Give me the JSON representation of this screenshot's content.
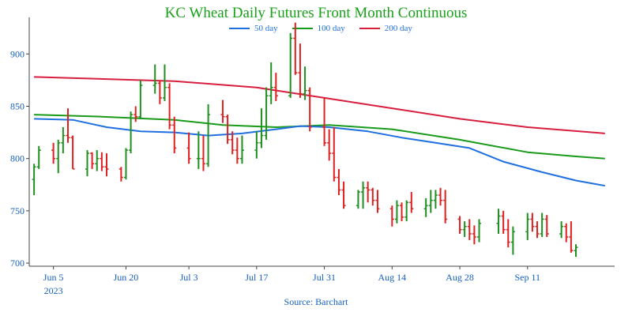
{
  "chart_data": {
    "type": "ohlc",
    "title": "KC Wheat Daily Futures Front Month Continuous",
    "source": "Source: Barchart",
    "ylim": [
      697,
      935
    ],
    "yticks": [
      700,
      750,
      800,
      850,
      900
    ],
    "x_range": [
      "2023-05-31",
      "2023-09-29"
    ],
    "xticks": [
      {
        "date": "2023-06-05",
        "label": "Jun 5",
        "sublabel": "2023"
      },
      {
        "date": "2023-06-20",
        "label": "Jun 20"
      },
      {
        "date": "2023-07-03",
        "label": "Jul 3"
      },
      {
        "date": "2023-07-17",
        "label": "Jul 17"
      },
      {
        "date": "2023-07-31",
        "label": "Jul 31"
      },
      {
        "date": "2023-08-14",
        "label": "Aug 14"
      },
      {
        "date": "2023-08-28",
        "label": "Aug 28"
      },
      {
        "date": "2023-09-11",
        "label": "Sep 11"
      }
    ],
    "colors": {
      "up": "#1f8f1f",
      "down": "#e02020",
      "ma50": "#1f6fdf",
      "ma100": "#1a9a1a",
      "ma200": "#d81e3e",
      "axis": "#444444",
      "title": "#1aa11a",
      "ticks": "#1560c0"
    },
    "legend": [
      {
        "name": "50 day",
        "color": "#1f6fdf"
      },
      {
        "name": "100 day",
        "color": "#1a9a1a"
      },
      {
        "name": "200 day",
        "color": "#d81e3e"
      }
    ],
    "bars": [
      [
        "2023-06-01",
        780,
        795,
        765,
        792
      ],
      [
        "2023-06-02",
        792,
        812,
        790,
        808
      ],
      [
        "2023-06-05",
        808,
        815,
        795,
        800
      ],
      [
        "2023-06-06",
        800,
        818,
        786,
        815
      ],
      [
        "2023-06-07",
        815,
        830,
        805,
        822
      ],
      [
        "2023-06-08",
        822,
        848,
        815,
        820
      ],
      [
        "2023-06-09",
        820,
        822,
        790,
        790
      ],
      [
        "2023-06-12",
        790,
        808,
        783,
        805
      ],
      [
        "2023-06-13",
        805,
        806,
        790,
        795
      ],
      [
        "2023-06-14",
        795,
        808,
        788,
        800
      ],
      [
        "2023-06-15",
        800,
        806,
        788,
        792
      ],
      [
        "2023-06-16",
        792,
        805,
        783,
        790
      ],
      [
        "2023-06-19",
        790,
        792,
        778,
        782
      ],
      [
        "2023-06-20",
        782,
        810,
        780,
        808
      ],
      [
        "2023-06-21",
        808,
        845,
        805,
        842
      ],
      [
        "2023-06-22",
        842,
        850,
        835,
        840
      ],
      [
        "2023-06-23",
        840,
        875,
        838,
        870
      ],
      [
        "2023-06-26",
        870,
        890,
        862,
        872
      ],
      [
        "2023-06-27",
        872,
        875,
        852,
        858
      ],
      [
        "2023-06-28",
        858,
        890,
        855,
        868
      ],
      [
        "2023-06-29",
        868,
        872,
        828,
        832
      ],
      [
        "2023-06-30",
        832,
        840,
        805,
        810
      ],
      [
        "2023-07-03",
        810,
        825,
        795,
        800
      ],
      [
        "2023-07-05",
        800,
        826,
        790,
        800
      ],
      [
        "2023-07-06",
        800,
        822,
        788,
        795
      ],
      [
        "2023-07-07",
        795,
        852,
        792,
        842
      ],
      [
        "2023-07-10",
        842,
        856,
        834,
        840
      ],
      [
        "2023-07-11",
        840,
        842,
        814,
        818
      ],
      [
        "2023-07-12",
        818,
        826,
        804,
        808
      ],
      [
        "2023-07-13",
        808,
        820,
        795,
        800
      ],
      [
        "2023-07-14",
        800,
        822,
        795,
        808
      ],
      [
        "2023-07-17",
        808,
        826,
        800,
        815
      ],
      [
        "2023-07-18",
        815,
        848,
        810,
        822
      ],
      [
        "2023-07-19",
        822,
        868,
        818,
        860
      ],
      [
        "2023-07-20",
        860,
        892,
        852,
        868
      ],
      [
        "2023-07-21",
        868,
        882,
        855,
        860
      ],
      [
        "2023-07-24",
        860,
        920,
        858,
        915
      ],
      [
        "2023-07-25",
        915,
        930,
        880,
        882
      ],
      [
        "2023-07-26",
        882,
        910,
        858,
        862
      ],
      [
        "2023-07-27",
        862,
        888,
        856,
        865
      ],
      [
        "2023-07-28",
        865,
        868,
        826,
        830
      ],
      [
        "2023-07-31",
        830,
        858,
        812,
        815
      ],
      [
        "2023-08-01",
        815,
        828,
        798,
        805
      ],
      [
        "2023-08-02",
        805,
        830,
        778,
        782
      ],
      [
        "2023-08-03",
        782,
        790,
        765,
        770
      ],
      [
        "2023-08-04",
        770,
        778,
        752,
        755
      ],
      [
        "2023-08-07",
        755,
        770,
        752,
        768
      ],
      [
        "2023-08-08",
        768,
        778,
        752,
        772
      ],
      [
        "2023-08-09",
        772,
        778,
        758,
        770
      ],
      [
        "2023-08-10",
        770,
        772,
        755,
        760
      ],
      [
        "2023-08-11",
        760,
        770,
        748,
        752
      ],
      [
        "2023-08-14",
        752,
        755,
        735,
        742
      ],
      [
        "2023-08-15",
        742,
        760,
        738,
        755
      ],
      [
        "2023-08-16",
        755,
        758,
        740,
        744
      ],
      [
        "2023-08-17",
        744,
        760,
        740,
        758
      ],
      [
        "2023-08-18",
        758,
        768,
        748,
        752
      ],
      [
        "2023-08-21",
        752,
        762,
        744,
        755
      ],
      [
        "2023-08-22",
        755,
        770,
        748,
        760
      ],
      [
        "2023-08-23",
        760,
        770,
        752,
        765
      ],
      [
        "2023-08-24",
        765,
        772,
        755,
        760
      ],
      [
        "2023-08-25",
        760,
        770,
        738,
        742
      ],
      [
        "2023-08-28",
        742,
        745,
        728,
        732
      ],
      [
        "2023-08-29",
        732,
        740,
        725,
        735
      ],
      [
        "2023-08-30",
        735,
        742,
        722,
        728
      ],
      [
        "2023-08-31",
        728,
        736,
        718,
        725
      ],
      [
        "2023-09-01",
        725,
        742,
        720,
        738
      ],
      [
        "2023-09-05",
        738,
        752,
        728,
        745
      ],
      [
        "2023-09-06",
        745,
        750,
        728,
        732
      ],
      [
        "2023-09-07",
        732,
        742,
        715,
        720
      ],
      [
        "2023-09-08",
        720,
        735,
        708,
        730
      ],
      [
        "2023-09-11",
        730,
        748,
        722,
        742
      ],
      [
        "2023-09-12",
        742,
        748,
        730,
        735
      ],
      [
        "2023-09-13",
        735,
        740,
        724,
        728
      ],
      [
        "2023-09-14",
        728,
        748,
        725,
        742
      ],
      [
        "2023-09-15",
        742,
        746,
        725,
        728
      ],
      [
        "2023-09-18",
        728,
        740,
        724,
        735
      ],
      [
        "2023-09-19",
        735,
        738,
        720,
        725
      ],
      [
        "2023-09-20",
        725,
        740,
        710,
        712
      ],
      [
        "2023-09-21",
        712,
        718,
        706,
        715
      ]
    ],
    "ma50": [
      [
        "2023-06-01",
        838
      ],
      [
        "2023-06-09",
        837
      ],
      [
        "2023-06-16",
        830
      ],
      [
        "2023-06-23",
        826
      ],
      [
        "2023-06-30",
        825
      ],
      [
        "2023-07-07",
        822
      ],
      [
        "2023-07-14",
        824
      ],
      [
        "2023-07-21",
        828
      ],
      [
        "2023-07-26",
        831
      ],
      [
        "2023-08-01",
        830
      ],
      [
        "2023-08-09",
        826
      ],
      [
        "2023-08-16",
        820
      ],
      [
        "2023-08-23",
        815
      ],
      [
        "2023-08-30",
        810
      ],
      [
        "2023-09-06",
        797
      ],
      [
        "2023-09-14",
        787
      ],
      [
        "2023-09-21",
        779
      ],
      [
        "2023-09-27",
        774
      ]
    ],
    "ma100": [
      [
        "2023-06-01",
        842
      ],
      [
        "2023-06-15",
        840
      ],
      [
        "2023-06-30",
        837
      ],
      [
        "2023-07-10",
        832
      ],
      [
        "2023-07-21",
        830
      ],
      [
        "2023-08-01",
        832
      ],
      [
        "2023-08-14",
        828
      ],
      [
        "2023-08-28",
        818
      ],
      [
        "2023-09-11",
        806
      ],
      [
        "2023-09-21",
        802
      ],
      [
        "2023-09-27",
        800
      ]
    ],
    "ma200": [
      [
        "2023-06-01",
        878
      ],
      [
        "2023-06-16",
        876
      ],
      [
        "2023-06-30",
        874
      ],
      [
        "2023-07-17",
        868
      ],
      [
        "2023-07-31",
        858
      ],
      [
        "2023-08-14",
        848
      ],
      [
        "2023-08-28",
        838
      ],
      [
        "2023-09-11",
        830
      ],
      [
        "2023-09-27",
        824
      ]
    ]
  }
}
